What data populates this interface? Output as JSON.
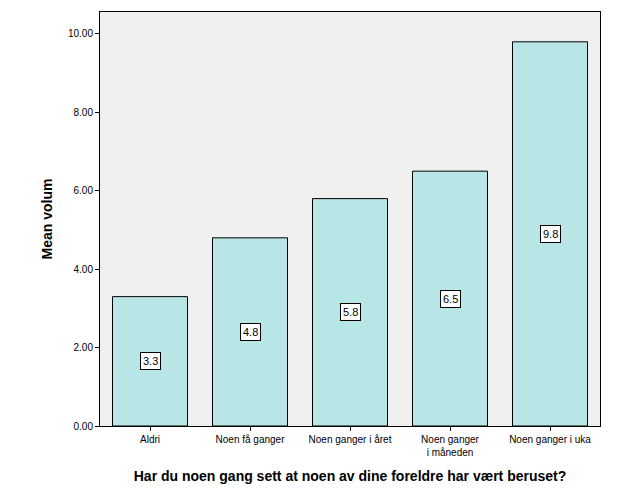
{
  "chart_data": {
    "type": "bar",
    "x_label": "Har du noen gang sett at noen av dine foreldre har vært beruset?",
    "y_label": "Mean volum",
    "categories": [
      "Aldri",
      "Noen få ganger",
      "Noen ganger i året",
      "Noen ganger i måneden",
      "Noen ganger i uka"
    ],
    "values": [
      3.3,
      4.8,
      5.8,
      6.5,
      9.8
    ],
    "color": "#b8e6e6",
    "ylim": [
      0,
      10.56
    ],
    "yticks": [
      {
        "value": 0,
        "label": "0.00"
      },
      {
        "value": 2,
        "label": "2.00"
      },
      {
        "value": 4,
        "label": "4.00"
      },
      {
        "value": 6,
        "label": "6.00"
      },
      {
        "value": 8,
        "label": "8.00"
      },
      {
        "value": 10,
        "label": "10.00"
      }
    ],
    "grid": false,
    "data_labels": true
  }
}
